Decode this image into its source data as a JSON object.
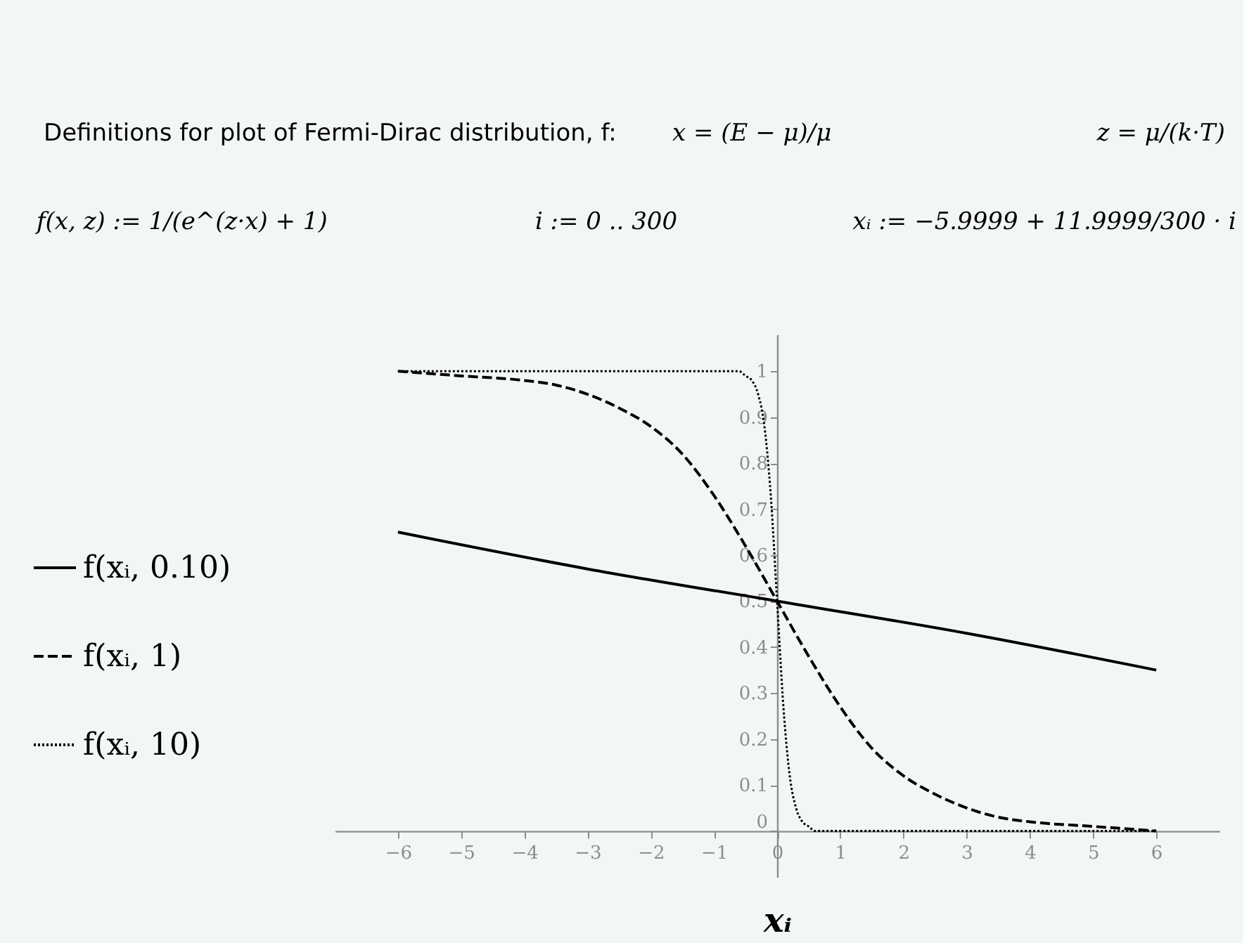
{
  "chart_data": {
    "type": "line",
    "annotations": [
      "Definitions for plot of Fermi-Dirac distribution, f:",
      "x = (E − μ)/μ",
      "z = μ/(k·T)",
      "f(x, z) := 1/(e^(z·x) + 1)",
      "i := 0 .. 300",
      "xᵢ := −5.9999 + 11.9999/300 · i"
    ],
    "xlabel": "xᵢ",
    "series": [
      {
        "name": "f(xᵢ, 0.10)",
        "color": "#000000",
        "line_style": "solid",
        "x": [
          -6,
          -3,
          0,
          3,
          6
        ],
        "values": [
          0.65,
          0.57,
          0.5,
          0.43,
          0.35
        ]
      },
      {
        "name": "f(xᵢ, 1)",
        "color": "#000000",
        "line_style": "dashed",
        "x": [
          -6,
          -5,
          -4,
          -3.5,
          -3,
          -2.5,
          -2,
          -1.5,
          -1,
          -0.5,
          0,
          0.5,
          1,
          1.5,
          2,
          2.5,
          3,
          3.5,
          4,
          5,
          6
        ],
        "values": [
          1.0,
          0.99,
          0.98,
          0.97,
          0.95,
          0.92,
          0.88,
          0.82,
          0.73,
          0.62,
          0.5,
          0.38,
          0.27,
          0.18,
          0.12,
          0.08,
          0.05,
          0.03,
          0.02,
          0.01,
          0.0
        ]
      },
      {
        "name": "f(xᵢ, 10)",
        "color": "#000000",
        "line_style": "dotted",
        "x": [
          -6,
          -0.6,
          -0.5,
          -0.4,
          -0.3,
          -0.2,
          -0.1,
          0,
          0.1,
          0.2,
          0.3,
          0.4,
          0.5,
          0.6,
          6
        ],
        "values": [
          1.0,
          1.0,
          0.99,
          0.98,
          0.95,
          0.88,
          0.73,
          0.5,
          0.27,
          0.12,
          0.05,
          0.02,
          0.01,
          0.0,
          0.0
        ]
      }
    ],
    "xlim": [
      -7,
      7
    ],
    "ylim": [
      -0.1,
      1.08
    ],
    "xticks": [
      -6,
      -5,
      -4,
      -3,
      -2,
      -1,
      0,
      1,
      2,
      3,
      4,
      5,
      6
    ],
    "yticks": [
      0,
      0.1,
      0.2,
      0.3,
      0.4,
      0.5,
      0.6,
      0.7,
      0.8,
      0.9,
      1
    ],
    "grid": false,
    "legend": "left",
    "marker": "none"
  }
}
